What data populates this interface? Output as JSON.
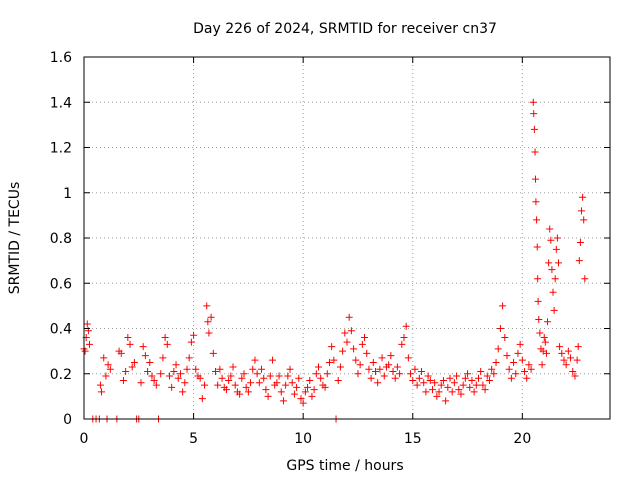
{
  "chart_data": {
    "type": "scatter",
    "title": "Day 226 of 2024, SRMTID for receiver cn37",
    "xlabel": "GPS time / hours",
    "ylabel": "SRMTID / TECUs",
    "xlim": [
      0,
      24
    ],
    "ylim": [
      0,
      1.6
    ],
    "x_ticks": [
      0,
      5,
      10,
      15,
      20
    ],
    "x_tick_labels": [
      "0",
      "5",
      "10",
      "15",
      "20"
    ],
    "y_ticks": [
      0,
      0.2,
      0.4,
      0.6,
      0.8,
      1,
      1.2,
      1.4,
      1.6
    ],
    "y_tick_labels": [
      "0",
      "0.2",
      "0.4",
      "0.6",
      "0.8",
      "1",
      "1.2",
      "1.4",
      "1.6"
    ],
    "grid": true,
    "series": [
      {
        "name": "SRMTID",
        "color": "#ff0000",
        "marker": "+",
        "points": [
          [
            0.0,
            0.31
          ],
          [
            0.05,
            0.3
          ],
          [
            0.1,
            0.36
          ],
          [
            0.15,
            0.42
          ],
          [
            0.2,
            0.39
          ],
          [
            0.25,
            0.33
          ],
          [
            0.4,
            0.0
          ],
          [
            0.55,
            0.0
          ],
          [
            0.7,
            0.0
          ],
          [
            0.75,
            0.15
          ],
          [
            0.8,
            0.12
          ],
          [
            0.9,
            0.27
          ],
          [
            1.0,
            0.19
          ],
          [
            1.05,
            0.0
          ],
          [
            1.1,
            0.24
          ],
          [
            1.2,
            0.22
          ],
          [
            1.5,
            0.0
          ],
          [
            1.6,
            0.3
          ],
          [
            1.7,
            0.29
          ],
          [
            1.8,
            0.17
          ],
          [
            1.9,
            0.21
          ],
          [
            2.0,
            0.36
          ],
          [
            2.1,
            0.33
          ],
          [
            2.2,
            0.23
          ],
          [
            2.3,
            0.25
          ],
          [
            2.4,
            0.0
          ],
          [
            2.5,
            0.0
          ],
          [
            2.6,
            0.16
          ],
          [
            2.7,
            0.32
          ],
          [
            2.8,
            0.28
          ],
          [
            2.9,
            0.21
          ],
          [
            3.0,
            0.25
          ],
          [
            3.1,
            0.19
          ],
          [
            3.2,
            0.17
          ],
          [
            3.3,
            0.15
          ],
          [
            3.4,
            0.0
          ],
          [
            3.5,
            0.2
          ],
          [
            3.6,
            0.27
          ],
          [
            3.7,
            0.36
          ],
          [
            3.8,
            0.33
          ],
          [
            3.9,
            0.19
          ],
          [
            4.0,
            0.14
          ],
          [
            4.1,
            0.21
          ],
          [
            4.2,
            0.24
          ],
          [
            4.3,
            0.18
          ],
          [
            4.4,
            0.2
          ],
          [
            4.5,
            0.12
          ],
          [
            4.6,
            0.16
          ],
          [
            4.7,
            0.22
          ],
          [
            4.8,
            0.27
          ],
          [
            4.9,
            0.34
          ],
          [
            5.0,
            0.37
          ],
          [
            5.1,
            0.22
          ],
          [
            5.2,
            0.19
          ],
          [
            5.3,
            0.18
          ],
          [
            5.4,
            0.09
          ],
          [
            5.5,
            0.15
          ],
          [
            5.6,
            0.5
          ],
          [
            5.65,
            0.43
          ],
          [
            5.7,
            0.38
          ],
          [
            5.8,
            0.45
          ],
          [
            5.9,
            0.29
          ],
          [
            6.0,
            0.21
          ],
          [
            6.1,
            0.15
          ],
          [
            6.2,
            0.22
          ],
          [
            6.3,
            0.18
          ],
          [
            6.4,
            0.14
          ],
          [
            6.5,
            0.13
          ],
          [
            6.6,
            0.17
          ],
          [
            6.7,
            0.19
          ],
          [
            6.8,
            0.23
          ],
          [
            6.9,
            0.15
          ],
          [
            7.0,
            0.12
          ],
          [
            7.1,
            0.11
          ],
          [
            7.2,
            0.18
          ],
          [
            7.3,
            0.2
          ],
          [
            7.4,
            0.14
          ],
          [
            7.5,
            0.12
          ],
          [
            7.6,
            0.16
          ],
          [
            7.7,
            0.22
          ],
          [
            7.8,
            0.26
          ],
          [
            7.9,
            0.2
          ],
          [
            8.0,
            0.16
          ],
          [
            8.1,
            0.22
          ],
          [
            8.2,
            0.18
          ],
          [
            8.3,
            0.13
          ],
          [
            8.4,
            0.1
          ],
          [
            8.5,
            0.19
          ],
          [
            8.6,
            0.26
          ],
          [
            8.7,
            0.15
          ],
          [
            8.8,
            0.16
          ],
          [
            8.9,
            0.19
          ],
          [
            9.0,
            0.12
          ],
          [
            9.1,
            0.08
          ],
          [
            9.2,
            0.15
          ],
          [
            9.3,
            0.19
          ],
          [
            9.4,
            0.22
          ],
          [
            9.5,
            0.16
          ],
          [
            9.6,
            0.11
          ],
          [
            9.7,
            0.14
          ],
          [
            9.8,
            0.18
          ],
          [
            9.9,
            0.09
          ],
          [
            10.0,
            0.07
          ],
          [
            10.1,
            0.12
          ],
          [
            10.2,
            0.14
          ],
          [
            10.3,
            0.17
          ],
          [
            10.4,
            0.1
          ],
          [
            10.5,
            0.13
          ],
          [
            10.6,
            0.2
          ],
          [
            10.7,
            0.23
          ],
          [
            10.8,
            0.18
          ],
          [
            10.9,
            0.15
          ],
          [
            11.0,
            0.14
          ],
          [
            11.1,
            0.2
          ],
          [
            11.2,
            0.25
          ],
          [
            11.3,
            0.32
          ],
          [
            11.4,
            0.26
          ],
          [
            11.5,
            0.0
          ],
          [
            11.6,
            0.17
          ],
          [
            11.7,
            0.23
          ],
          [
            11.8,
            0.3
          ],
          [
            11.9,
            0.38
          ],
          [
            12.0,
            0.34
          ],
          [
            12.1,
            0.45
          ],
          [
            12.2,
            0.39
          ],
          [
            12.3,
            0.31
          ],
          [
            12.4,
            0.26
          ],
          [
            12.5,
            0.2
          ],
          [
            12.6,
            0.24
          ],
          [
            12.7,
            0.33
          ],
          [
            12.8,
            0.36
          ],
          [
            12.9,
            0.29
          ],
          [
            13.0,
            0.22
          ],
          [
            13.1,
            0.18
          ],
          [
            13.2,
            0.25
          ],
          [
            13.3,
            0.21
          ],
          [
            13.4,
            0.16
          ],
          [
            13.5,
            0.22
          ],
          [
            13.6,
            0.27
          ],
          [
            13.7,
            0.19
          ],
          [
            13.8,
            0.23
          ],
          [
            13.9,
            0.24
          ],
          [
            14.0,
            0.28
          ],
          [
            14.1,
            0.21
          ],
          [
            14.2,
            0.18
          ],
          [
            14.3,
            0.23
          ],
          [
            14.4,
            0.2
          ],
          [
            14.5,
            0.33
          ],
          [
            14.6,
            0.36
          ],
          [
            14.7,
            0.41
          ],
          [
            14.8,
            0.27
          ],
          [
            14.9,
            0.2
          ],
          [
            15.0,
            0.17
          ],
          [
            15.1,
            0.22
          ],
          [
            15.2,
            0.15
          ],
          [
            15.3,
            0.18
          ],
          [
            15.4,
            0.21
          ],
          [
            15.5,
            0.16
          ],
          [
            15.6,
            0.12
          ],
          [
            15.7,
            0.19
          ],
          [
            15.8,
            0.17
          ],
          [
            15.9,
            0.13
          ],
          [
            16.0,
            0.16
          ],
          [
            16.1,
            0.1
          ],
          [
            16.2,
            0.12
          ],
          [
            16.3,
            0.15
          ],
          [
            16.4,
            0.17
          ],
          [
            16.5,
            0.08
          ],
          [
            16.6,
            0.14
          ],
          [
            16.7,
            0.18
          ],
          [
            16.8,
            0.12
          ],
          [
            16.9,
            0.16
          ],
          [
            17.0,
            0.19
          ],
          [
            17.1,
            0.13
          ],
          [
            17.2,
            0.11
          ],
          [
            17.3,
            0.15
          ],
          [
            17.4,
            0.18
          ],
          [
            17.5,
            0.2
          ],
          [
            17.6,
            0.14
          ],
          [
            17.7,
            0.17
          ],
          [
            17.8,
            0.12
          ],
          [
            17.9,
            0.15
          ],
          [
            18.0,
            0.18
          ],
          [
            18.1,
            0.21
          ],
          [
            18.2,
            0.15
          ],
          [
            18.3,
            0.13
          ],
          [
            18.4,
            0.19
          ],
          [
            18.5,
            0.17
          ],
          [
            18.6,
            0.22
          ],
          [
            18.7,
            0.2
          ],
          [
            18.8,
            0.25
          ],
          [
            18.9,
            0.31
          ],
          [
            19.0,
            0.4
          ],
          [
            19.1,
            0.5
          ],
          [
            19.2,
            0.36
          ],
          [
            19.3,
            0.28
          ],
          [
            19.4,
            0.22
          ],
          [
            19.5,
            0.18
          ],
          [
            19.6,
            0.25
          ],
          [
            19.7,
            0.2
          ],
          [
            19.8,
            0.29
          ],
          [
            19.9,
            0.33
          ],
          [
            20.0,
            0.26
          ],
          [
            20.1,
            0.21
          ],
          [
            20.2,
            0.18
          ],
          [
            20.3,
            0.24
          ],
          [
            20.4,
            0.22
          ],
          [
            20.5,
            1.4
          ],
          [
            20.52,
            1.35
          ],
          [
            20.55,
            1.28
          ],
          [
            20.58,
            1.18
          ],
          [
            20.6,
            1.06
          ],
          [
            20.62,
            0.96
          ],
          [
            20.65,
            0.88
          ],
          [
            20.68,
            0.76
          ],
          [
            20.7,
            0.62
          ],
          [
            20.72,
            0.52
          ],
          [
            20.75,
            0.44
          ],
          [
            20.8,
            0.38
          ],
          [
            20.85,
            0.31
          ],
          [
            20.9,
            0.24
          ],
          [
            20.95,
            0.3
          ],
          [
            21.0,
            0.36
          ],
          [
            21.05,
            0.34
          ],
          [
            21.1,
            0.29
          ],
          [
            21.15,
            0.43
          ],
          [
            21.2,
            0.69
          ],
          [
            21.25,
            0.84
          ],
          [
            21.3,
            0.79
          ],
          [
            21.35,
            0.66
          ],
          [
            21.4,
            0.56
          ],
          [
            21.45,
            0.48
          ],
          [
            21.5,
            0.62
          ],
          [
            21.55,
            0.75
          ],
          [
            21.6,
            0.8
          ],
          [
            21.65,
            0.69
          ],
          [
            21.7,
            0.32
          ],
          [
            21.8,
            0.29
          ],
          [
            21.9,
            0.26
          ],
          [
            22.0,
            0.24
          ],
          [
            22.1,
            0.3
          ],
          [
            22.2,
            0.27
          ],
          [
            22.3,
            0.21
          ],
          [
            22.4,
            0.19
          ],
          [
            22.5,
            0.26
          ],
          [
            22.55,
            0.32
          ],
          [
            22.6,
            0.7
          ],
          [
            22.65,
            0.78
          ],
          [
            22.7,
            0.92
          ],
          [
            22.75,
            0.98
          ],
          [
            22.8,
            0.88
          ],
          [
            22.85,
            0.62
          ]
        ]
      }
    ]
  }
}
